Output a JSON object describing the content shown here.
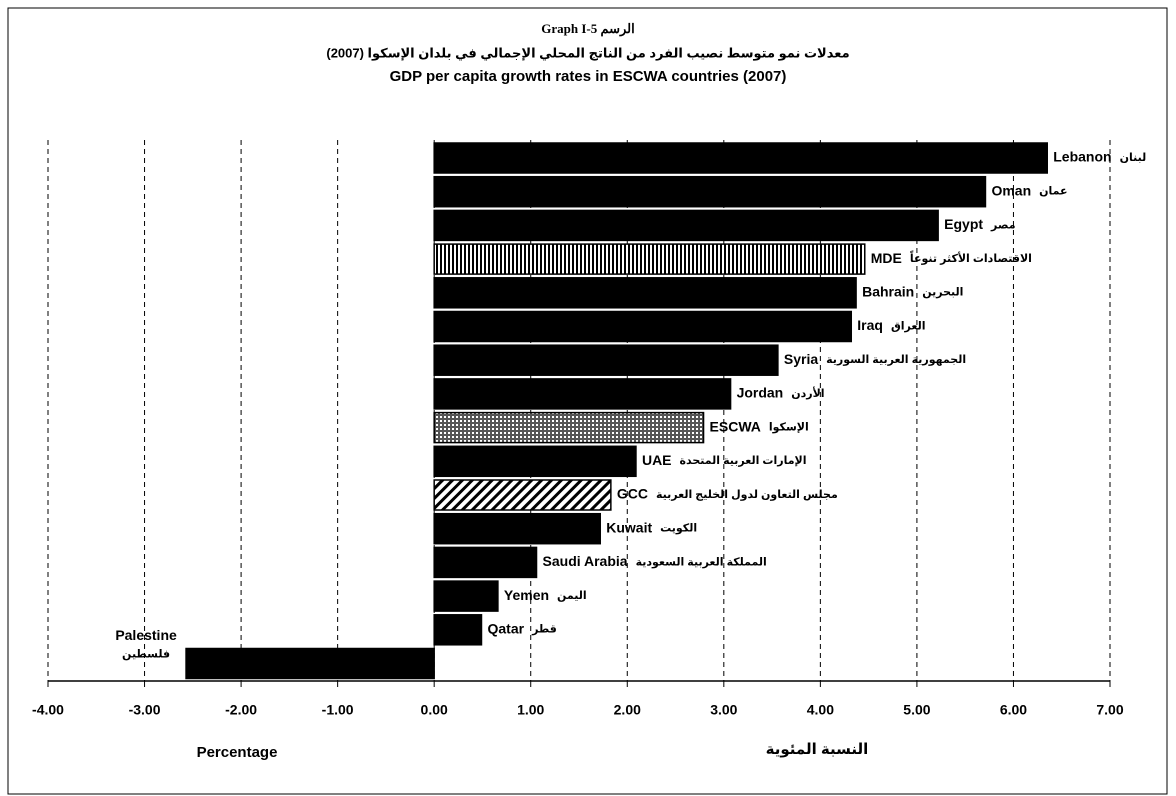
{
  "chart_data": {
    "type": "bar",
    "orientation": "horizontal",
    "title": "Graph I-5 الرسم",
    "subtitle_ar": "معدلات نمو متوسط نصيب الفرد من الناتج المحلي الإجمالي في بلدان الإسكوا (2007)",
    "subtitle": "GDP per capita growth rates in ESCWA countries (2007)",
    "x_label": "Percentage",
    "x_label_ar": "النسبة المئوية",
    "categories": [
      "Lebanon",
      "Oman",
      "Egypt",
      "MDE",
      "Bahrain",
      "Iraq",
      "Syria",
      "Jordan",
      "ESCWA",
      "UAE",
      "GCC",
      "Kuwait",
      "Saudi Arabia",
      "Yemen",
      "Qatar",
      "Palestine"
    ],
    "categories_ar": [
      "لبنان",
      "عمان",
      "مصر",
      "الاقتصادات الأكثر تنوعاً",
      "البحرين",
      "العراق",
      "الجمهورية العربية السورية",
      "الأردن",
      "الإسكوا",
      "الإمارات العربية المتحدة",
      "مجلس التعاون لدول الخليج العربية",
      "الكويت",
      "المملكة العربية السعودية",
      "اليمن",
      "قطر",
      "فلسطين"
    ],
    "values": [
      6.35,
      5.71,
      5.22,
      4.46,
      4.37,
      4.32,
      3.56,
      3.07,
      2.79,
      2.09,
      1.83,
      1.72,
      1.06,
      0.66,
      0.49,
      -2.57
    ],
    "fills": [
      "solid",
      "solid",
      "solid",
      "vertical",
      "solid",
      "solid",
      "solid",
      "solid",
      "dotted",
      "solid",
      "diagonal",
      "solid",
      "solid",
      "solid",
      "solid",
      "solid"
    ],
    "color": "#000000",
    "xlim": [
      -4,
      7
    ],
    "xticks": [
      {
        "value": -4,
        "label": "-4.00"
      },
      {
        "value": -3,
        "label": "-3.00"
      },
      {
        "value": -2,
        "label": "-2.00"
      },
      {
        "value": -1,
        "label": "-1.00"
      },
      {
        "value": 0,
        "label": "0.00"
      },
      {
        "value": 1,
        "label": "1.00"
      },
      {
        "value": 2,
        "label": "2.00"
      },
      {
        "value": 3,
        "label": "3.00"
      },
      {
        "value": 4,
        "label": "4.00"
      },
      {
        "value": 5,
        "label": "5.00"
      },
      {
        "value": 6,
        "label": "6.00"
      },
      {
        "value": 7,
        "label": "7.00"
      }
    ],
    "grid": true
  }
}
